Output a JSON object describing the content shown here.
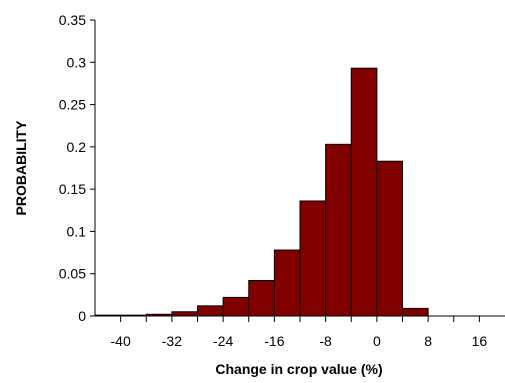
{
  "chart_data": {
    "type": "bar",
    "title": "",
    "xlabel": "Change in crop value (%)",
    "ylabel": "PROBABILITY",
    "bar_color": "#800000",
    "bar_edge_color": "#000000",
    "xlim": [
      -44,
      20
    ],
    "ylim": [
      0,
      0.35
    ],
    "bin_width": 4,
    "bins": [
      {
        "x": -42,
        "y": 0.001
      },
      {
        "x": -38,
        "y": 0.001
      },
      {
        "x": -34,
        "y": 0.002
      },
      {
        "x": -30,
        "y": 0.005
      },
      {
        "x": -26,
        "y": 0.012
      },
      {
        "x": -22,
        "y": 0.022
      },
      {
        "x": -18,
        "y": 0.042
      },
      {
        "x": -14,
        "y": 0.078
      },
      {
        "x": -10,
        "y": 0.136
      },
      {
        "x": -6,
        "y": 0.203
      },
      {
        "x": -2,
        "y": 0.293
      },
      {
        "x": 2,
        "y": 0.183
      },
      {
        "x": 6,
        "y": 0.009
      },
      {
        "x": 10,
        "y": 0
      },
      {
        "x": 14,
        "y": 0
      },
      {
        "x": 18,
        "y": 0
      }
    ],
    "x_ticks": [
      -40,
      -32,
      -24,
      -16,
      -8,
      0,
      8,
      16
    ],
    "x_tick_labels": [
      "-40",
      "-32",
      "-24",
      "-16",
      "-8",
      "0",
      "8",
      "16"
    ],
    "y_ticks": [
      0,
      0.05,
      0.1,
      0.15,
      0.2,
      0.25,
      0.3,
      0.35
    ],
    "y_tick_labels": [
      "0",
      "0.05",
      "0.1",
      "0.15",
      "0.2",
      "0.25",
      "0.3",
      "0.35"
    ],
    "grid": false,
    "legend": "none"
  }
}
